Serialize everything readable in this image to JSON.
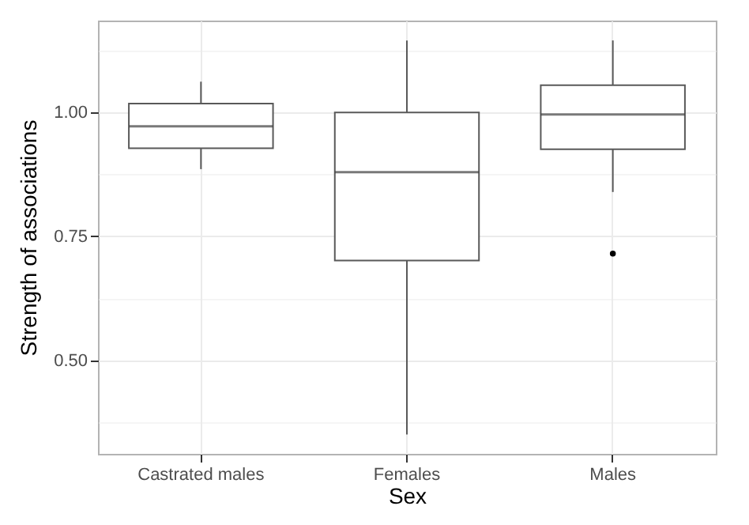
{
  "chart_data": {
    "type": "box",
    "xlabel": "Sex",
    "ylabel": "Strength of associations",
    "categories": [
      "Castrated males",
      "Females",
      "Males"
    ],
    "boxes": [
      {
        "low": 0.885,
        "q1": 0.927,
        "median": 0.971,
        "q3": 1.017,
        "high": 1.061
      },
      {
        "low": 0.351,
        "q1": 0.701,
        "median": 0.879,
        "q3": 0.999,
        "high": 1.144
      },
      {
        "low": 0.839,
        "q1": 0.925,
        "median": 0.995,
        "q3": 1.054,
        "high": 1.144,
        "outliers": [
          0.715
        ]
      }
    ],
    "color": "#595959",
    "ylim": [
      0.312,
      1.184
    ],
    "yticks": [
      {
        "value": 0.375,
        "label": null
      },
      {
        "value": 0.5,
        "label": "0.50"
      },
      {
        "value": 0.625,
        "label": null
      },
      {
        "value": 0.75,
        "label": "0.75"
      },
      {
        "value": 0.875,
        "label": null
      },
      {
        "value": 1.0,
        "label": "1.00"
      },
      {
        "value": 1.125,
        "label": null
      }
    ],
    "grid": true
  }
}
